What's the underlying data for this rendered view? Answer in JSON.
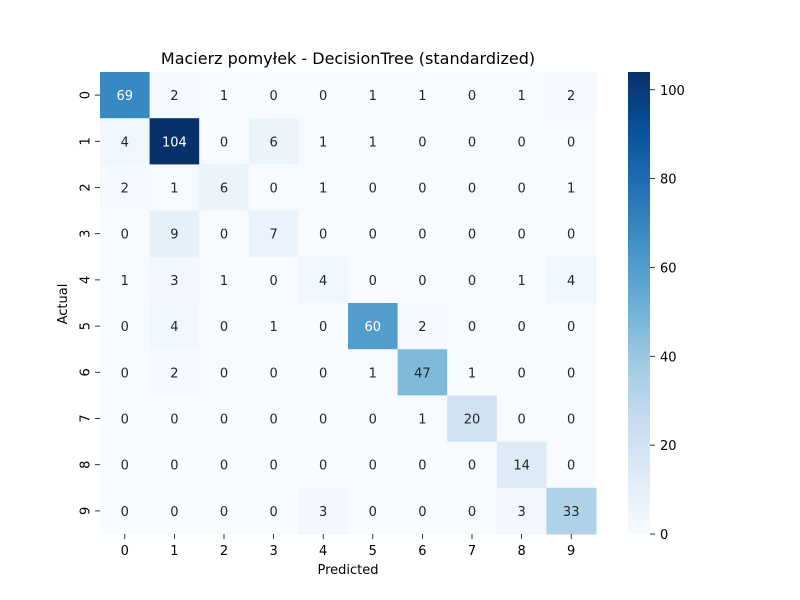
{
  "chart_data": {
    "type": "heatmap",
    "title": "Macierz pomyłek - DecisionTree (standardized)",
    "xlabel": "Predicted",
    "ylabel": "Actual",
    "x_ticks": [
      "0",
      "1",
      "2",
      "3",
      "4",
      "5",
      "6",
      "7",
      "8",
      "9"
    ],
    "y_ticks": [
      "0",
      "1",
      "2",
      "3",
      "4",
      "5",
      "6",
      "7",
      "8",
      "9"
    ],
    "values": [
      [
        69,
        2,
        1,
        0,
        0,
        1,
        1,
        0,
        1,
        2
      ],
      [
        4,
        104,
        0,
        6,
        1,
        1,
        0,
        0,
        0,
        0
      ],
      [
        2,
        1,
        6,
        0,
        1,
        0,
        0,
        0,
        0,
        1
      ],
      [
        0,
        9,
        0,
        7,
        0,
        0,
        0,
        0,
        0,
        0
      ],
      [
        1,
        3,
        1,
        0,
        4,
        0,
        0,
        0,
        1,
        4
      ],
      [
        0,
        4,
        0,
        1,
        0,
        60,
        2,
        0,
        0,
        0
      ],
      [
        0,
        2,
        0,
        0,
        0,
        1,
        47,
        1,
        0,
        0
      ],
      [
        0,
        0,
        0,
        0,
        0,
        0,
        1,
        20,
        0,
        0
      ],
      [
        0,
        0,
        0,
        0,
        0,
        0,
        0,
        0,
        14,
        0
      ],
      [
        0,
        0,
        0,
        0,
        3,
        0,
        0,
        0,
        3,
        33
      ]
    ],
    "colormap": "Blues",
    "colorbar": {
      "range": [
        0,
        104
      ],
      "ticks": [
        "0",
        "20",
        "40",
        "60",
        "80",
        "100"
      ],
      "tick_values": [
        0,
        20,
        40,
        60,
        80,
        100
      ]
    },
    "annotation_light_color": "#ffffff",
    "annotation_dark_color": "#262626"
  }
}
